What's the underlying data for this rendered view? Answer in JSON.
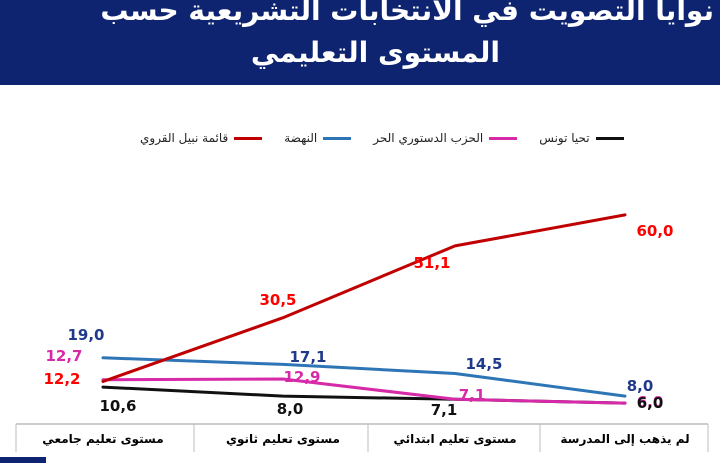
{
  "header": {
    "title_line1": "نوايا التصويت في الانتخابات التشريعية حسب",
    "title_line2": "المستوى التعليمي"
  },
  "colors": {
    "header_bg": "#0e2470",
    "qarwi": "#c00000",
    "nahda": "#2e75b6",
    "destouri": "#d62aa8",
    "tahya": "#111111"
  },
  "chart_data": {
    "type": "line",
    "categories": [
      "مستوى تعليم جامعي",
      "مستوى تعليم ثانوي",
      "مستوى تعليم ابتدائي",
      "لم يذهب إلى المدرسة"
    ],
    "series": [
      {
        "key": "qarwi",
        "name": "قائمة نبيل القروي",
        "color": "#c00000",
        "values": [
          12.2,
          30.5,
          51.1,
          60.0
        ],
        "labels": [
          "12,2",
          "30,5",
          "51,1",
          "60,0"
        ]
      },
      {
        "key": "nahda",
        "name": "النهضة",
        "color": "#2e75b6",
        "values": [
          19.0,
          17.1,
          14.5,
          8.0
        ],
        "labels": [
          "19,0",
          "17,1",
          "14,5",
          "8,0"
        ]
      },
      {
        "key": "destouri",
        "name": "الحزب الدستوري الحر",
        "color": "#d62aa8",
        "values": [
          12.7,
          12.9,
          7.1,
          6.0
        ],
        "labels": [
          "12,7",
          "12,9",
          "7,1",
          "6,0"
        ]
      },
      {
        "key": "tahya",
        "name": "تحيا تونس",
        "color": "#111111",
        "values": [
          10.6,
          8.0,
          7.1,
          6.0
        ],
        "labels": [
          "10,6",
          "8,0",
          "7,1",
          "6,0"
        ]
      }
    ],
    "legend_order": [
      "qarwi",
      "nahda",
      "destouri",
      "tahya"
    ],
    "ylim": [
      0,
      70
    ],
    "grid": false,
    "legend_position": "top"
  }
}
